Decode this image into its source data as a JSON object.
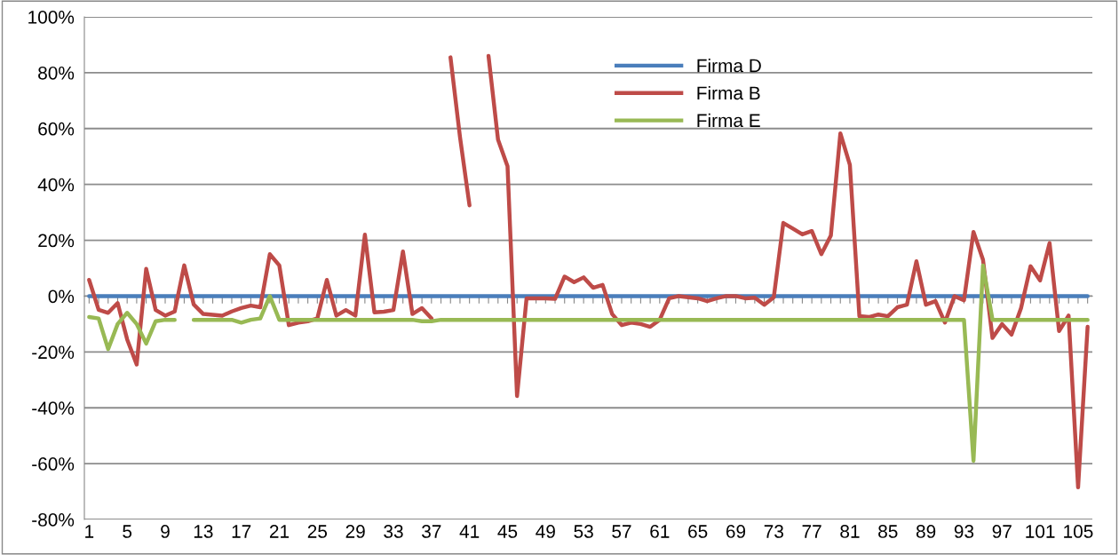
{
  "chart_data": {
    "type": "line",
    "categories": [
      "1",
      null,
      null,
      null,
      "5",
      null,
      null,
      null,
      "9",
      null,
      null,
      null,
      "13",
      null,
      null,
      null,
      "17",
      null,
      null,
      null,
      "21",
      null,
      null,
      null,
      "25",
      null,
      null,
      null,
      "29",
      null,
      null,
      null,
      "33",
      null,
      null,
      null,
      "37",
      null,
      null,
      null,
      "41",
      null,
      null,
      null,
      "45",
      null,
      null,
      null,
      "49",
      null,
      null,
      null,
      "53",
      null,
      null,
      null,
      "57",
      null,
      null,
      null,
      "61",
      null,
      null,
      null,
      "65",
      null,
      null,
      null,
      "69",
      null,
      null,
      null,
      "73",
      null,
      null,
      null,
      "77",
      null,
      null,
      null,
      "81",
      null,
      null,
      null,
      "85",
      null,
      null,
      null,
      "89",
      null,
      null,
      null,
      "93",
      null,
      null,
      null,
      "97",
      null,
      null,
      null,
      "101",
      null,
      null,
      null,
      "105",
      null
    ],
    "series": [
      {
        "name": "Firma D",
        "color": "#4a7ebb",
        "values": [
          0,
          0,
          0,
          0,
          0,
          0,
          0,
          0,
          0,
          0,
          0,
          0,
          0,
          0,
          0,
          0,
          0,
          0,
          0,
          0,
          0,
          0,
          0,
          0,
          0,
          0,
          0,
          0,
          0,
          0,
          0,
          0,
          0,
          0,
          0,
          0,
          0,
          0,
          0,
          0,
          0,
          0,
          0,
          0,
          0,
          0,
          0,
          0,
          0,
          0,
          0,
          0,
          0,
          0,
          0,
          0,
          0,
          0,
          0,
          0,
          0,
          0,
          0,
          0,
          0,
          0,
          0,
          0,
          0,
          0,
          0,
          0,
          0,
          0,
          0,
          0,
          0,
          0,
          0,
          0,
          0,
          0,
          0,
          0,
          0,
          0,
          0,
          0,
          0,
          0,
          0,
          0,
          0,
          0,
          0,
          0,
          0,
          0,
          0,
          0,
          0,
          0,
          0,
          0,
          0,
          0
        ]
      },
      {
        "name": "Firma B",
        "color": "#be4b48",
        "values": [
          5.8,
          -4.9,
          -6,
          -2.5,
          -15.5,
          -24.5,
          9.8,
          -5,
          -7,
          -5.5,
          11,
          -3,
          -6.4,
          -6.7,
          -7,
          -5.5,
          -4.3,
          -3.4,
          -4,
          15,
          11,
          -10.4,
          -9.5,
          -9,
          -8,
          5.8,
          -7,
          -5,
          -7,
          22,
          -5.8,
          -5.6,
          -5,
          16,
          -6.4,
          -4.3,
          -8,
          null,
          85.5,
          57,
          32.5,
          null,
          86,
          56,
          46.5,
          -35.8,
          -0.8,
          -0.8,
          -0.8,
          -1,
          7,
          5,
          6.7,
          3,
          4,
          -6.4,
          -10.4,
          -9.5,
          -10,
          -11,
          -8.5,
          -0.8,
          0,
          -0.4,
          -0.8,
          -1.8,
          -0.8,
          0,
          0,
          -0.8,
          -0.6,
          -3.1,
          -0.4,
          26.2,
          24.2,
          22.1,
          23.3,
          15,
          21.7,
          58.3,
          47,
          -7.2,
          -7.5,
          -6.6,
          -7.2,
          -4,
          -3.1,
          12.5,
          -3.1,
          -1.8,
          -9.5,
          0,
          -1.5,
          23,
          13,
          -15,
          -10,
          -13.8,
          -4.3,
          10.7,
          5.6,
          19,
          -12.5,
          -7,
          -68.5,
          -11
        ]
      },
      {
        "name": "Firma E",
        "color": "#98b954",
        "values": [
          -7.5,
          -8,
          -19,
          -10,
          -6,
          -10,
          -17,
          -9,
          -8.5,
          -8.5,
          null,
          -8.5,
          -8.5,
          -8.5,
          -8.5,
          -8.5,
          -9.5,
          -8.5,
          -8,
          0,
          -8.5,
          -8.5,
          -8.5,
          -8.5,
          -8.5,
          -8.5,
          -8.5,
          -8.5,
          -8.5,
          -8.5,
          -8.5,
          -8.5,
          -8.5,
          -8.5,
          -8.5,
          -9,
          -9,
          -8.5,
          -8.5,
          -8.5,
          -8.5,
          -8.5,
          -8.5,
          -8.5,
          -8.5,
          -8.5,
          -8.5,
          -8.5,
          -8.5,
          -8.5,
          -8.5,
          -8.5,
          -8.5,
          -8.5,
          -8.5,
          -8.5,
          -8.5,
          -8.5,
          -8.5,
          -8.5,
          -8.5,
          -8.5,
          -8.5,
          -8.5,
          -8.5,
          -8.5,
          -8.5,
          -8.5,
          -8.5,
          -8.5,
          -8.5,
          -8.5,
          -8.5,
          -8.5,
          -8.5,
          -8.5,
          -8.5,
          -8.5,
          -8.5,
          -8.5,
          -8.5,
          -8.5,
          -8.5,
          -8.5,
          -8.5,
          -8.5,
          -8.5,
          -8.5,
          -8.5,
          -8.5,
          -8.5,
          -8.5,
          -8.5,
          -59,
          11,
          -8.5,
          -8.5,
          -8.5,
          -8.5,
          -8.5,
          -8.5,
          -8.5,
          -8.5,
          -8.5,
          -8.5,
          -8.5
        ]
      }
    ],
    "ylim": [
      -80,
      100
    ],
    "yticks": [
      {
        "value": -80,
        "label": "-80%"
      },
      {
        "value": -60,
        "label": "-60%"
      },
      {
        "value": -40,
        "label": "-40%"
      },
      {
        "value": -20,
        "label": "-20%"
      },
      {
        "value": 0,
        "label": "0%"
      },
      {
        "value": 20,
        "label": "20%"
      },
      {
        "value": 40,
        "label": "40%"
      },
      {
        "value": 60,
        "label": "60%"
      },
      {
        "value": 80,
        "label": "80%"
      },
      {
        "value": 100,
        "label": "100%"
      }
    ],
    "grid": "y",
    "legend": "top",
    "marker": "none",
    "line_style": "solid"
  }
}
